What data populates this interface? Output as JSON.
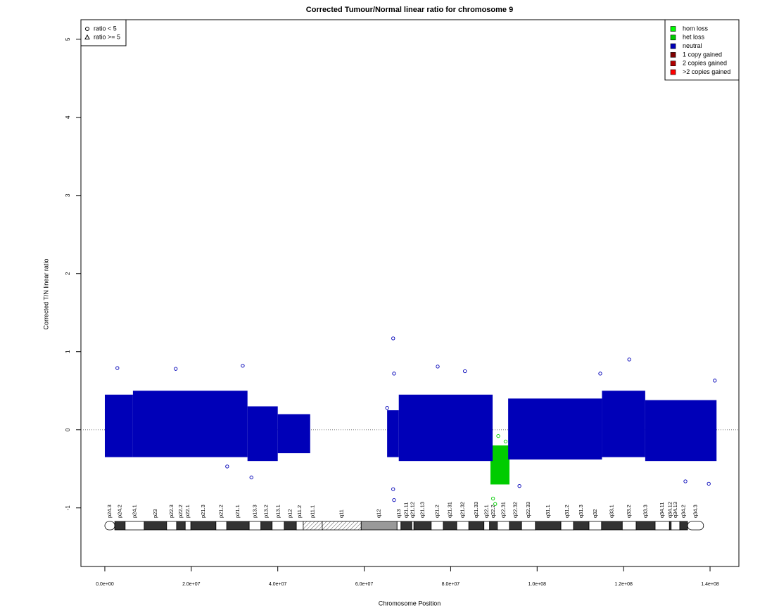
{
  "chart_data": {
    "type": "scatter",
    "title": "Corrected Tumour/Normal linear ratio for chromosome  9",
    "xlabel": "Chromosome Position",
    "ylabel": "Corrected T/N linear ratio",
    "xlim": [
      -5530000,
      146670000
    ],
    "ylim": [
      -1.75,
      5.25
    ],
    "xticks": [
      {
        "value": 0,
        "label": "0.0e+00"
      },
      {
        "value": 20000000,
        "label": "2.0e+07"
      },
      {
        "value": 40000000,
        "label": "4.0e+07"
      },
      {
        "value": 60000000,
        "label": "6.0e+07"
      },
      {
        "value": 80000000,
        "label": "8.0e+07"
      },
      {
        "value": 100000000,
        "label": "1.0e+08"
      },
      {
        "value": 120000000,
        "label": "1.2e+08"
      },
      {
        "value": 140000000,
        "label": "1.4e+08"
      }
    ],
    "yticks": [
      -1,
      0,
      1,
      2,
      3,
      4,
      5
    ],
    "hline": 0,
    "legend_position": "topright",
    "shape_legend": [
      {
        "label": "ratio < 5",
        "shape": "circle"
      },
      {
        "label": "ratio >= 5",
        "shape": "triangle"
      }
    ],
    "series": [
      {
        "name": "hom loss",
        "color": "#00ff00",
        "x": [],
        "values": [],
        "ranges": []
      },
      {
        "name": "het loss",
        "color": "#00cc00",
        "x": [
          90300000,
          91000000,
          89800000,
          92700000
        ],
        "values": [
          -0.95,
          -0.08,
          -0.88,
          -0.15
        ],
        "ranges": [
          {
            "x": [
              89200000,
              93600000
            ],
            "y": [
              -0.7,
              -0.2
            ]
          }
        ]
      },
      {
        "name": "neutral",
        "color": "#0000b8",
        "x": [
          2900000,
          16400000,
          31900000,
          66700000,
          66900000,
          77000000,
          83300000,
          121300000,
          141100000,
          33900000,
          66900000,
          66700000,
          134300000,
          139700000,
          95900000,
          65300000,
          28300000,
          114600000
        ],
        "values": [
          0.79,
          0.78,
          0.82,
          1.17,
          0.72,
          0.81,
          0.75,
          0.9,
          0.63,
          -0.61,
          -0.9,
          -0.76,
          -0.66,
          -0.69,
          -0.72,
          0.28,
          -0.47,
          0.72
        ],
        "ranges": [
          {
            "x": [
              0,
              6500000
            ],
            "y": [
              -0.35,
              0.45
            ]
          },
          {
            "x": [
              6500000,
              33000000
            ],
            "y": [
              -0.35,
              0.5
            ]
          },
          {
            "x": [
              33000000,
              40000000
            ],
            "y": [
              -0.4,
              0.3
            ]
          },
          {
            "x": [
              40000000,
              47500000
            ],
            "y": [
              -0.3,
              0.2
            ]
          },
          {
            "x": [
              65300000,
              68000000
            ],
            "y": [
              -0.35,
              0.25
            ]
          },
          {
            "x": [
              68000000,
              89700000
            ],
            "y": [
              -0.4,
              0.45
            ]
          },
          {
            "x": [
              93300000,
              115000000
            ],
            "y": [
              -0.38,
              0.4
            ]
          },
          {
            "x": [
              115000000,
              125000000
            ],
            "y": [
              -0.35,
              0.5
            ]
          },
          {
            "x": [
              125000000,
              141500000
            ],
            "y": [
              -0.4,
              0.38
            ]
          }
        ]
      },
      {
        "name": "1 copy gained",
        "color": "#800000",
        "x": [],
        "values": [],
        "ranges": []
      },
      {
        "name": "2 copies gained",
        "color": "#b00000",
        "x": [],
        "values": [],
        "ranges": []
      },
      {
        "name": ">2 copies gained",
        "color": "#ff0000",
        "x": [],
        "values": [],
        "ranges": []
      }
    ],
    "ideogram": [
      {
        "label": "p24.3",
        "start": 0,
        "end": 2300000,
        "fill": "#ffffff"
      },
      {
        "label": "p24.2",
        "start": 2300000,
        "end": 4700000,
        "fill": "#333333"
      },
      {
        "label": "p24.1",
        "start": 4700000,
        "end": 9100000,
        "fill": "#ffffff"
      },
      {
        "label": "p23",
        "start": 9100000,
        "end": 14300000,
        "fill": "#333333"
      },
      {
        "label": "p22.3",
        "start": 14300000,
        "end": 16600000,
        "fill": "#ffffff"
      },
      {
        "label": "p22.2",
        "start": 16600000,
        "end": 18600000,
        "fill": "#333333"
      },
      {
        "label": "p22.1",
        "start": 18600000,
        "end": 19900000,
        "fill": "#ffffff"
      },
      {
        "label": "p21.3",
        "start": 19900000,
        "end": 25700000,
        "fill": "#333333"
      },
      {
        "label": "p21.2",
        "start": 25700000,
        "end": 28200000,
        "fill": "#ffffff"
      },
      {
        "label": "p21.1",
        "start": 28200000,
        "end": 33400000,
        "fill": "#333333"
      },
      {
        "label": "p13.3",
        "start": 33400000,
        "end": 36100000,
        "fill": "#ffffff"
      },
      {
        "label": "p13.2",
        "start": 36100000,
        "end": 38700000,
        "fill": "#333333"
      },
      {
        "label": "p13.1",
        "start": 38700000,
        "end": 41500000,
        "fill": "#ffffff"
      },
      {
        "label": "p12",
        "start": 41500000,
        "end": 44300000,
        "fill": "#333333"
      },
      {
        "label": "p11.2",
        "start": 44300000,
        "end": 45900000,
        "fill": "#ffffff"
      },
      {
        "label": "p11.1",
        "start": 45900000,
        "end": 50300000,
        "fill": "hatch"
      },
      {
        "label": "q11",
        "start": 50300000,
        "end": 59300000,
        "fill": "hatch"
      },
      {
        "label": "q12",
        "start": 59300000,
        "end": 67600000,
        "fill": "#999999"
      },
      {
        "label": "q13",
        "start": 67600000,
        "end": 68500000,
        "fill": "#ffffff"
      },
      {
        "label": "q21.11",
        "start": 68500000,
        "end": 71000000,
        "fill": "#333333"
      },
      {
        "label": "q21.12",
        "start": 71000000,
        "end": 71500000,
        "fill": "#ffffff"
      },
      {
        "label": "q21.13",
        "start": 71500000,
        "end": 75500000,
        "fill": "#333333"
      },
      {
        "label": "q21.2",
        "start": 75500000,
        "end": 78300000,
        "fill": "#ffffff"
      },
      {
        "label": "q21.31",
        "start": 78300000,
        "end": 81400000,
        "fill": "#333333"
      },
      {
        "label": "q21.32",
        "start": 81400000,
        "end": 84200000,
        "fill": "#ffffff"
      },
      {
        "label": "q21.33",
        "start": 84200000,
        "end": 87700000,
        "fill": "#333333"
      },
      {
        "label": "q22.1",
        "start": 87700000,
        "end": 89000000,
        "fill": "#ffffff"
      },
      {
        "label": "q22.2",
        "start": 89000000,
        "end": 90800000,
        "fill": "#333333"
      },
      {
        "label": "q22.31",
        "start": 90800000,
        "end": 93600000,
        "fill": "#ffffff"
      },
      {
        "label": "q22.32",
        "start": 93600000,
        "end": 96400000,
        "fill": "#333333"
      },
      {
        "label": "q22.33",
        "start": 96400000,
        "end": 99600000,
        "fill": "#ffffff"
      },
      {
        "label": "q31.1",
        "start": 99600000,
        "end": 105500000,
        "fill": "#333333"
      },
      {
        "label": "q31.2",
        "start": 105500000,
        "end": 108400000,
        "fill": "#ffffff"
      },
      {
        "label": "q31.3",
        "start": 108400000,
        "end": 112000000,
        "fill": "#333333"
      },
      {
        "label": "q32",
        "start": 112000000,
        "end": 114900000,
        "fill": "#ffffff"
      },
      {
        "label": "q33.1",
        "start": 114900000,
        "end": 119700000,
        "fill": "#333333"
      },
      {
        "label": "q33.2",
        "start": 119700000,
        "end": 122900000,
        "fill": "#ffffff"
      },
      {
        "label": "q33.3",
        "start": 122900000,
        "end": 127300000,
        "fill": "#333333"
      },
      {
        "label": "q34.11",
        "start": 127300000,
        "end": 130600000,
        "fill": "#ffffff"
      },
      {
        "label": "q34.12",
        "start": 130600000,
        "end": 131000000,
        "fill": "#333333"
      },
      {
        "label": "q34.13",
        "start": 131000000,
        "end": 133000000,
        "fill": "#ffffff"
      },
      {
        "label": "q34.2",
        "start": 133000000,
        "end": 134800000,
        "fill": "#333333"
      },
      {
        "label": "q34.3",
        "start": 134800000,
        "end": 138500000,
        "fill": "#ffffff"
      }
    ]
  }
}
